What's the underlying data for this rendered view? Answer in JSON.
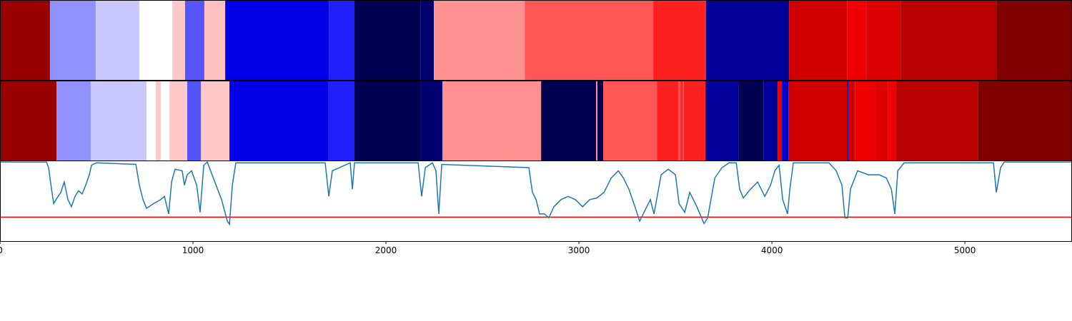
{
  "chart_data": {
    "type": "segmentation",
    "xlim": [
      0,
      5555
    ],
    "xticks": [
      0,
      1000,
      2000,
      3000,
      4000,
      5000
    ],
    "rows": [
      {
        "segments": [
          {
            "start": 0,
            "end": 259,
            "color": "#990000"
          },
          {
            "start": 259,
            "end": 496,
            "color": "#9090ff"
          },
          {
            "start": 496,
            "end": 722,
            "color": "#c8c8ff"
          },
          {
            "start": 722,
            "end": 893,
            "color": "#ffffff"
          },
          {
            "start": 893,
            "end": 959,
            "color": "#ffc8c8"
          },
          {
            "start": 959,
            "end": 1059,
            "color": "#5555ff"
          },
          {
            "start": 1059,
            "end": 1167,
            "color": "#ffc0c0"
          },
          {
            "start": 1167,
            "end": 1704,
            "color": "#0000e8"
          },
          {
            "start": 1704,
            "end": 1837,
            "color": "#2020ff"
          },
          {
            "start": 1837,
            "end": 2178,
            "color": "#000050"
          },
          {
            "start": 2178,
            "end": 2248,
            "color": "#000070"
          },
          {
            "start": 2248,
            "end": 2719,
            "color": "#ff9090"
          },
          {
            "start": 2719,
            "end": 3385,
            "color": "#ff5555"
          },
          {
            "start": 3385,
            "end": 3659,
            "color": "#ff2020"
          },
          {
            "start": 3659,
            "end": 4089,
            "color": "#000099"
          },
          {
            "start": 4089,
            "end": 4389,
            "color": "#d00000"
          },
          {
            "start": 4389,
            "end": 4489,
            "color": "#ee0000"
          },
          {
            "start": 4489,
            "end": 4667,
            "color": "#dd0000"
          },
          {
            "start": 4667,
            "end": 5163,
            "color": "#b80000"
          },
          {
            "start": 5163,
            "end": 5555,
            "color": "#800000"
          }
        ]
      },
      {
        "segments": [
          {
            "start": 0,
            "end": 293,
            "color": "#990000"
          },
          {
            "start": 293,
            "end": 470,
            "color": "#9090ff"
          },
          {
            "start": 470,
            "end": 759,
            "color": "#c8c8ff"
          },
          {
            "start": 759,
            "end": 807,
            "color": "#ffffff"
          },
          {
            "start": 807,
            "end": 833,
            "color": "#ffc8c8"
          },
          {
            "start": 833,
            "end": 878,
            "color": "#ffffff"
          },
          {
            "start": 878,
            "end": 970,
            "color": "#ffc8c8"
          },
          {
            "start": 970,
            "end": 1041,
            "color": "#5555ff"
          },
          {
            "start": 1041,
            "end": 1189,
            "color": "#ffc8c8"
          },
          {
            "start": 1189,
            "end": 1700,
            "color": "#0000e8"
          },
          {
            "start": 1700,
            "end": 1837,
            "color": "#2020ff"
          },
          {
            "start": 1837,
            "end": 2181,
            "color": "#000050"
          },
          {
            "start": 2181,
            "end": 2293,
            "color": "#000070"
          },
          {
            "start": 2293,
            "end": 2804,
            "color": "#ff9090"
          },
          {
            "start": 2804,
            "end": 3089,
            "color": "#000050"
          },
          {
            "start": 3089,
            "end": 3096,
            "color": "#ff9090"
          },
          {
            "start": 3096,
            "end": 3126,
            "color": "#000050"
          },
          {
            "start": 3126,
            "end": 3404,
            "color": "#ff5555"
          },
          {
            "start": 3404,
            "end": 3515,
            "color": "#ff2020"
          },
          {
            "start": 3515,
            "end": 3526,
            "color": "#ff5555"
          },
          {
            "start": 3526,
            "end": 3537,
            "color": "#ff2020"
          },
          {
            "start": 3537,
            "end": 3544,
            "color": "#ff5555"
          },
          {
            "start": 3544,
            "end": 3656,
            "color": "#ff2020"
          },
          {
            "start": 3656,
            "end": 3826,
            "color": "#000099"
          },
          {
            "start": 3826,
            "end": 3956,
            "color": "#000050"
          },
          {
            "start": 3956,
            "end": 4030,
            "color": "#000099"
          },
          {
            "start": 4030,
            "end": 4052,
            "color": "#ee0000"
          },
          {
            "start": 4052,
            "end": 4085,
            "color": "#0000cc"
          },
          {
            "start": 4085,
            "end": 4389,
            "color": "#d00000"
          },
          {
            "start": 4389,
            "end": 4396,
            "color": "#0000aa"
          },
          {
            "start": 4396,
            "end": 4430,
            "color": "#d00000"
          },
          {
            "start": 4430,
            "end": 4533,
            "color": "#ee0000"
          },
          {
            "start": 4533,
            "end": 4600,
            "color": "#e00000"
          },
          {
            "start": 4600,
            "end": 4641,
            "color": "#ee0000"
          },
          {
            "start": 4641,
            "end": 5067,
            "color": "#b80000"
          },
          {
            "start": 5067,
            "end": 5555,
            "color": "#800000"
          }
        ]
      }
    ],
    "line": {
      "color": "#1f77b4",
      "ylim": [
        0,
        1
      ],
      "x": [
        0,
        241,
        252,
        267,
        278,
        296,
        315,
        333,
        352,
        370,
        389,
        407,
        426,
        444,
        463,
        474,
        500,
        704,
        722,
        741,
        759,
        796,
        833,
        852,
        874,
        889,
        907,
        944,
        956,
        970,
        993,
        1019,
        1037,
        1056,
        1074,
        1148,
        1178,
        1189,
        1204,
        1222,
        1685,
        1704,
        1722,
        1815,
        1826,
        1837,
        2167,
        2185,
        2204,
        2241,
        2259,
        2274,
        2289,
        2741,
        2759,
        2778,
        2796,
        2822,
        2844,
        2870,
        2907,
        2944,
        2981,
        3019,
        3056,
        3093,
        3130,
        3167,
        3204,
        3230,
        3259,
        3285,
        3315,
        3333,
        3370,
        3389,
        3426,
        3463,
        3500,
        3519,
        3548,
        3574,
        3611,
        3648,
        3667,
        3704,
        3741,
        3778,
        3815,
        3833,
        3852,
        3889,
        3926,
        3963,
        3993,
        4015,
        4037,
        4056,
        4081,
        4093,
        4111,
        4296,
        4333,
        4363,
        4378,
        4393,
        4407,
        4444,
        4500,
        4556,
        4593,
        4619,
        4637,
        4652,
        4685,
        5148,
        5163,
        5185,
        5204,
        5555
      ],
      "values": [
        0.99,
        0.99,
        0.92,
        0.65,
        0.47,
        0.54,
        0.61,
        0.74,
        0.52,
        0.43,
        0.56,
        0.63,
        0.59,
        0.7,
        0.83,
        0.95,
        0.98,
        0.96,
        0.7,
        0.52,
        0.41,
        0.47,
        0.52,
        0.56,
        0.34,
        0.74,
        0.9,
        0.88,
        0.7,
        0.83,
        0.88,
        0.7,
        0.36,
        0.95,
        0.99,
        0.52,
        0.25,
        0.21,
        0.7,
        0.98,
        0.98,
        0.56,
        0.88,
        0.98,
        0.65,
        0.98,
        0.98,
        0.56,
        0.92,
        0.98,
        0.88,
        0.34,
        0.96,
        0.92,
        0.61,
        0.52,
        0.34,
        0.34,
        0.29,
        0.43,
        0.52,
        0.56,
        0.52,
        0.43,
        0.52,
        0.54,
        0.61,
        0.79,
        0.88,
        0.79,
        0.65,
        0.47,
        0.25,
        0.34,
        0.52,
        0.34,
        0.83,
        0.9,
        0.83,
        0.47,
        0.36,
        0.61,
        0.43,
        0.22,
        0.29,
        0.79,
        0.92,
        0.98,
        0.98,
        0.65,
        0.54,
        0.65,
        0.74,
        0.56,
        0.7,
        0.88,
        0.95,
        0.52,
        0.34,
        0.65,
        0.98,
        0.98,
        0.88,
        0.7,
        0.29,
        0.29,
        0.65,
        0.88,
        0.83,
        0.83,
        0.79,
        0.65,
        0.34,
        0.88,
        0.98,
        0.98,
        0.61,
        0.92,
        0.99,
        0.99
      ]
    },
    "threshold": {
      "value": 0.3,
      "color": "#ff0000"
    }
  }
}
